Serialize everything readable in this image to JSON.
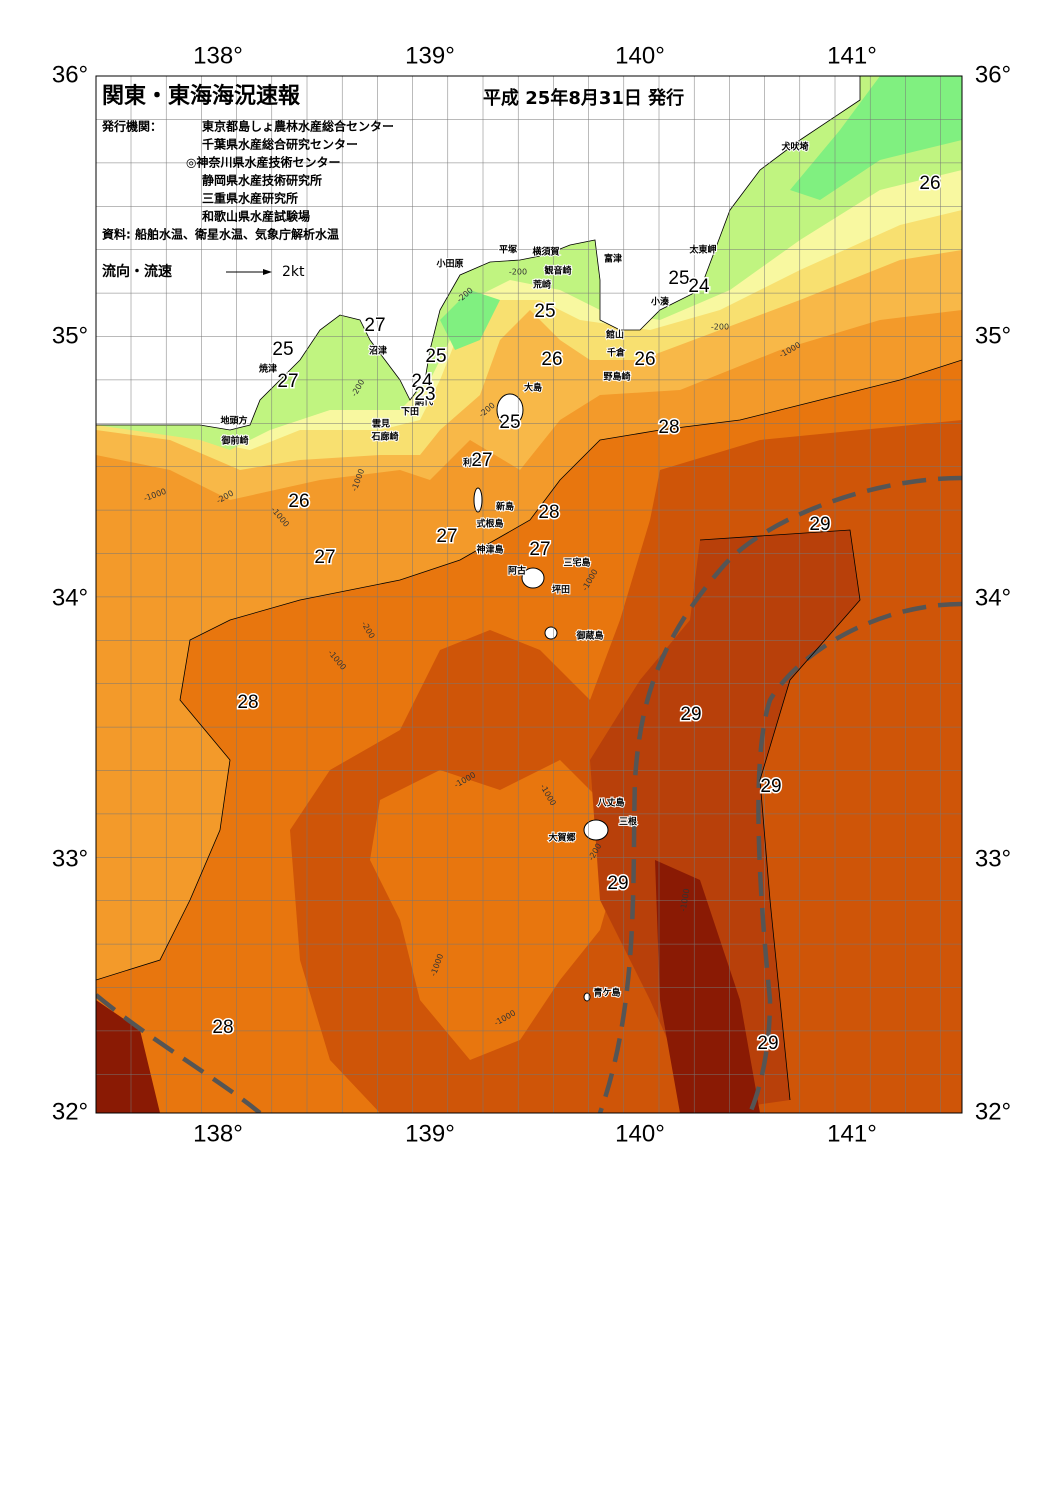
{
  "header": {
    "title": "関東・東海海況速報",
    "date": "平成 25年8月31日 発行",
    "issuers_label": "発行機関：",
    "issuers": [
      "東京都島しょ農林水産総合センター",
      "千葉県水産総合研究センター",
      "◎神奈川県水産技術センター",
      "静岡県水産技術研究所",
      "三重県水産研究所",
      "和歌山県水産試験場"
    ],
    "source": "資料: 船舶水温、衛星水温、気象庁解析水温",
    "flow_legend": {
      "label": "流向・流速",
      "speed": "2kt"
    }
  },
  "axes": {
    "longitude": [
      "138°",
      "139°",
      "140°",
      "141°"
    ],
    "latitude": [
      "36°",
      "35°",
      "34°",
      "33°",
      "32°"
    ]
  },
  "places": [
    "犬吠埼",
    "太東岬",
    "小湊",
    "富津",
    "館山",
    "千倉",
    "野島崎",
    "横須賀",
    "観音崎",
    "平塚",
    "荒崎",
    "小田原",
    "沼津",
    "焼津",
    "網代",
    "下田",
    "雲見",
    "石廊崎",
    "地頭方",
    "御前崎",
    "大島",
    "利島",
    "新島",
    "式根島",
    "神津島",
    "三宅島",
    "阿古",
    "坪田",
    "御蔵島",
    "八丈島",
    "三根",
    "大賀郷",
    "青ケ島"
  ],
  "isotherm_labels": [
    "26",
    "25",
    "24",
    "27",
    "25",
    "27",
    "25",
    "24",
    "23",
    "25",
    "26",
    "26",
    "25",
    "28",
    "27",
    "26",
    "28",
    "27",
    "27",
    "27",
    "29",
    "28",
    "29",
    "29",
    "29",
    "28",
    "29"
  ],
  "depth_labels": [
    "-200",
    "-1000",
    "-1000",
    "-200",
    "-1000",
    "-200",
    "-1000",
    "-200",
    "-1000",
    "-1000",
    "-1000",
    "-200",
    "-1000",
    "-1000",
    "-1000",
    "-1000",
    "-200",
    "-200",
    "-200"
  ]
}
